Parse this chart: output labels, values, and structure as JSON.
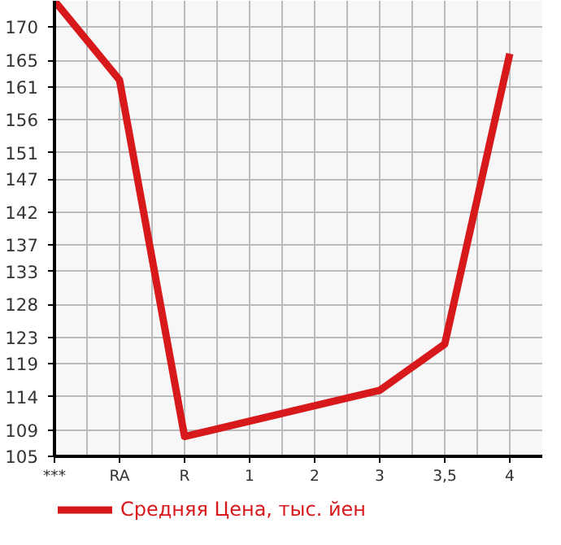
{
  "chart_data": {
    "type": "line",
    "categories": [
      "***",
      "RA",
      "R",
      "1",
      "2",
      "3",
      "3,5",
      "4"
    ],
    "series": [
      {
        "name": "Средняя Цена, тыс. йен",
        "color": "#d7191c",
        "values": [
          174,
          162,
          108,
          null,
          null,
          115,
          122,
          166
        ]
      }
    ],
    "ylim": [
      105,
      174
    ],
    "yticks": [
      105,
      109,
      114,
      119,
      123,
      128,
      133,
      137,
      142,
      147,
      151,
      156,
      161,
      165,
      170
    ],
    "grid": true,
    "legend": "bottom",
    "line_style": "solid"
  }
}
